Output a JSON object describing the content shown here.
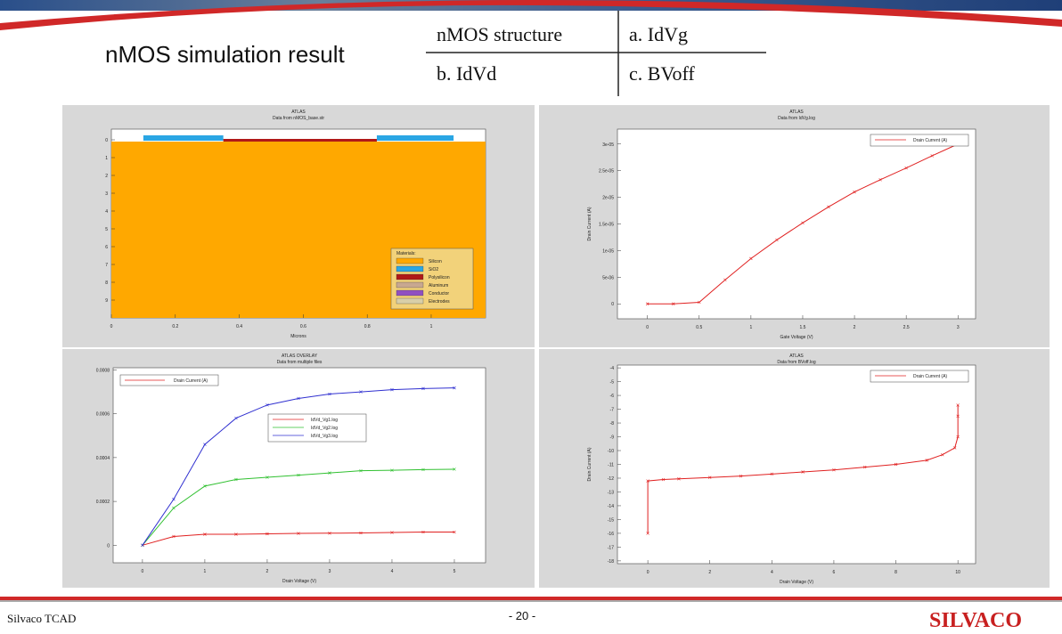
{
  "header": {
    "title": "nMOS simulation result"
  },
  "table": {
    "rows": [
      [
        "nMOS structure",
        "a. IdVg"
      ],
      [
        "b. IdVd",
        "c. BVoff"
      ]
    ]
  },
  "chart_data": [
    {
      "type": "structure",
      "title": "ATLAS",
      "subtitle": "Data from nMOS_base.str",
      "x_label": "Microns",
      "xlim": [
        0,
        1.17
      ],
      "ylim": [
        -0.6,
        10
      ],
      "y_inverted": true,
      "xticks": [
        0,
        0.2,
        0.4,
        0.6,
        0.8,
        1
      ],
      "yticks": [
        0,
        1,
        2,
        3,
        4,
        5,
        6,
        7,
        8,
        9
      ],
      "legend": "lower right",
      "legend_title": "Materials:",
      "materials": [
        {
          "name": "Silicon",
          "color": "#ffa800",
          "regions": [
            {
              "x": [
                0,
                1.17
              ],
              "y": [
                0.1,
                10
              ]
            }
          ]
        },
        {
          "name": "SiO2",
          "color": "#2aa6e4",
          "regions": [
            {
              "x": [
                0.1,
                0.35
              ],
              "y": [
                -0.25,
                0.05
              ]
            },
            {
              "x": [
                0.83,
                1.07
              ],
              "y": [
                -0.25,
                0.05
              ]
            }
          ]
        },
        {
          "name": "Polysilicon",
          "color": "#b01818",
          "regions": [
            {
              "x": [
                0.35,
                0.83
              ],
              "y": [
                -0.05,
                0.1
              ]
            }
          ]
        },
        {
          "name": "Aluminum",
          "color": "#c8a890",
          "regions": []
        },
        {
          "name": "Conductor",
          "color": "#9050c0",
          "regions": []
        },
        {
          "name": "Electrodes",
          "color": "#d8cfa8",
          "regions": []
        }
      ]
    },
    {
      "type": "line",
      "title": "ATLAS",
      "subtitle": "Data from IdVg.log",
      "x_label": "Gate Voltage (V)",
      "y_label": "Drain Current (A)",
      "xlim": [
        -0.29,
        3.17
      ],
      "ylim": [
        -2.8e-06,
        3.28e-05
      ],
      "xticks": [
        0,
        0.5,
        1,
        1.5,
        2,
        2.5,
        3
      ],
      "yticks": [
        0,
        {
          "value": 5e-06,
          "label": "5e-06"
        },
        {
          "value": 1e-05,
          "label": "1e-05"
        },
        {
          "value": 1.5e-05,
          "label": "1.5e-05"
        },
        {
          "value": 2e-05,
          "label": "2e-05"
        },
        {
          "value": 2.5e-05,
          "label": "2.5e-05"
        },
        {
          "value": 3e-05,
          "label": "3e-05"
        }
      ],
      "legend": "upper right",
      "x": [
        0,
        0.25,
        0.5,
        0.75,
        1,
        1.25,
        1.5,
        1.75,
        2,
        2.25,
        2.5,
        2.75,
        3
      ],
      "series": [
        {
          "name": "Drain Current (A)",
          "color": "#e02020",
          "values": [
            0,
            0,
            3e-07,
            4.5e-06,
            8.5e-06,
            1.2e-05,
            1.52e-05,
            1.82e-05,
            2.1e-05,
            2.33e-05,
            2.55e-05,
            2.78e-05,
            3e-05
          ]
        }
      ]
    },
    {
      "type": "line",
      "title": "ATLAS OVERLAY",
      "subtitle": "Data from multiple files",
      "x_label": "Drain Voltage (V)",
      "annotation": "Drain Current (A)",
      "xlim": [
        -0.47,
        5.5
      ],
      "ylim": [
        -8e-05,
        0.00081
      ],
      "xticks": [
        0,
        1,
        2,
        3,
        4,
        5
      ],
      "yticks": [
        0,
        0.0002,
        0.0004,
        0.0006,
        0.0008
      ],
      "legend": "center",
      "x": [
        0,
        0.5,
        1,
        1.5,
        2,
        2.5,
        3,
        3.5,
        4,
        4.5,
        5
      ],
      "series": [
        {
          "name": "IdVd_Vg1.log",
          "color": "#e02020",
          "values": [
            0,
            4e-05,
            5e-05,
            5e-05,
            5.2e-05,
            5.4e-05,
            5.5e-05,
            5.6e-05,
            5.8e-05,
            6e-05,
            6e-05
          ]
        },
        {
          "name": "IdVd_Vg2.log",
          "color": "#30c030",
          "values": [
            0,
            0.00017,
            0.00027,
            0.0003,
            0.00031,
            0.00032,
            0.00033,
            0.00034,
            0.000342,
            0.000345,
            0.000347
          ]
        },
        {
          "name": "IdVd_Vg3.log",
          "color": "#3030d0",
          "values": [
            0,
            0.00021,
            0.00046,
            0.00058,
            0.00064,
            0.00067,
            0.00069,
            0.0007,
            0.00071,
            0.000715,
            0.000718
          ]
        }
      ]
    },
    {
      "type": "line",
      "title": "ATLAS",
      "subtitle": "Data from BVoff.log",
      "x_label": "Drain Voltage (V)",
      "y_label": "Drain Current (A)",
      "xlim": [
        -0.98,
        10.57
      ],
      "ylim": [
        -18.2,
        -3.8
      ],
      "xticks": [
        0,
        2,
        4,
        6,
        8,
        10
      ],
      "yticks": [
        -4,
        -5,
        -6,
        -7,
        -8,
        -9,
        -10,
        -11,
        -12,
        -13,
        -14,
        -15,
        -16,
        -17,
        -18
      ],
      "legend": "upper right",
      "x": [
        0,
        0,
        0.5,
        1,
        2,
        3,
        4,
        5,
        6,
        7,
        8,
        9,
        9.5,
        9.9,
        10,
        10,
        10
      ],
      "series": [
        {
          "name": "Drain Current (A)",
          "color": "#e02020",
          "values": [
            -16,
            -12.2,
            -12.1,
            -12.05,
            -11.95,
            -11.85,
            -11.7,
            -11.55,
            -11.4,
            -11.2,
            -11,
            -10.7,
            -10.3,
            -9.8,
            -9,
            -7.5,
            -6.7
          ]
        }
      ]
    }
  ],
  "footer": {
    "left": "Silvaco TCAD",
    "page": "- 20 -",
    "logo": "SILVACO"
  }
}
